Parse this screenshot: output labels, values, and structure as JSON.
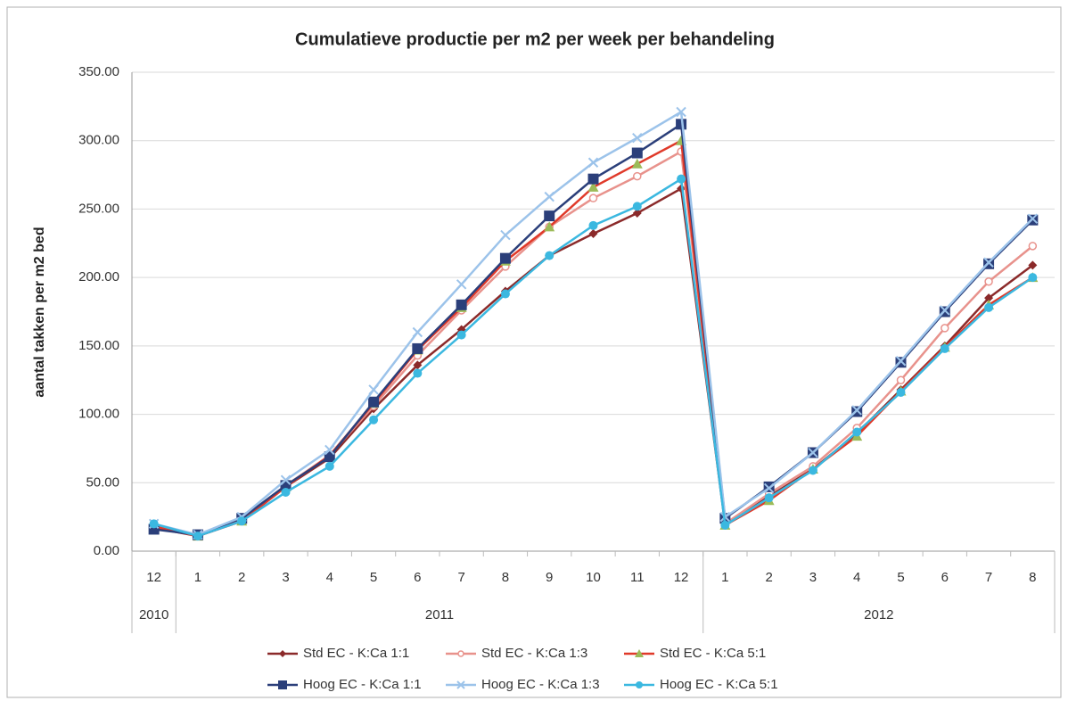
{
  "chart_data": {
    "type": "line",
    "title": "Cumulatieve productie per m2 per week per behandeling",
    "y_label": "aantal takken per m2 bed",
    "groups": [
      {
        "name": "2010",
        "categories": [
          "12"
        ]
      },
      {
        "name": "2011",
        "categories": [
          "1",
          "2",
          "3",
          "4",
          "5",
          "6",
          "7",
          "8",
          "9",
          "10",
          "11",
          "12"
        ]
      },
      {
        "name": "2012",
        "categories": [
          "1",
          "2",
          "3",
          "4",
          "5",
          "6",
          "7",
          "8"
        ]
      }
    ],
    "ylim": [
      0,
      350
    ],
    "yticks": [
      {
        "value": 0,
        "label": "0.00"
      },
      {
        "value": 50,
        "label": "50.00"
      },
      {
        "value": 100,
        "label": "100.00"
      },
      {
        "value": 150,
        "label": "150.00"
      },
      {
        "value": 200,
        "label": "200.00"
      },
      {
        "value": 250,
        "label": "250.00"
      },
      {
        "value": 300,
        "label": "300.00"
      },
      {
        "value": 350,
        "label": "350.00"
      }
    ],
    "grid": true,
    "legend": "bottom",
    "series": [
      {
        "name": "Std EC - K:Ca 1:1",
        "color": "#8b2a2a",
        "marker_color": "#8b2a2a",
        "marker": "diamond",
        "values": [
          17,
          11,
          22,
          47,
          68,
          104,
          136,
          162,
          190,
          216,
          232,
          247,
          265,
          20,
          40,
          60,
          86,
          118,
          150,
          185,
          209
        ]
      },
      {
        "name": "Std EC - K:Ca 1:3",
        "color": "#e8928c",
        "marker_color": "#e8928c",
        "marker": "circle-open",
        "values": [
          18,
          12,
          23,
          48,
          70,
          106,
          143,
          176,
          208,
          237,
          258,
          274,
          292,
          20,
          42,
          62,
          90,
          125,
          163,
          197,
          223
        ]
      },
      {
        "name": "Std EC - K:Ca 5:1",
        "color": "#e03a2a",
        "marker_color": "#9cbb58",
        "marker": "triangle",
        "values": [
          18,
          11,
          22,
          47,
          70,
          108,
          147,
          178,
          212,
          237,
          266,
          283,
          300,
          19,
          37,
          60,
          84,
          117,
          149,
          180,
          200
        ]
      },
      {
        "name": "Hoog EC - K:Ca 1:1",
        "color": "#2b3f7a",
        "marker_color": "#2b3f7a",
        "marker": "square",
        "values": [
          16,
          12,
          24,
          48,
          69,
          109,
          148,
          180,
          214,
          245,
          272,
          291,
          312,
          24,
          47,
          72,
          102,
          138,
          175,
          210,
          242
        ]
      },
      {
        "name": "Hoog EC - K:Ca 1:3",
        "color": "#9cc3ea",
        "marker_color": "#9cc3ea",
        "marker": "cross",
        "values": [
          20,
          12,
          25,
          52,
          74,
          118,
          160,
          195,
          231,
          259,
          284,
          302,
          321,
          25,
          46,
          72,
          103,
          139,
          176,
          211,
          243
        ]
      },
      {
        "name": "Hoog EC - K:Ca 5:1",
        "color": "#3bb8e0",
        "marker_color": "#3bb8e0",
        "marker": "circle",
        "values": [
          20,
          11,
          22,
          43,
          62,
          96,
          130,
          158,
          188,
          216,
          238,
          252,
          272,
          19,
          39,
          59,
          87,
          116,
          148,
          178,
          200
        ]
      }
    ]
  }
}
